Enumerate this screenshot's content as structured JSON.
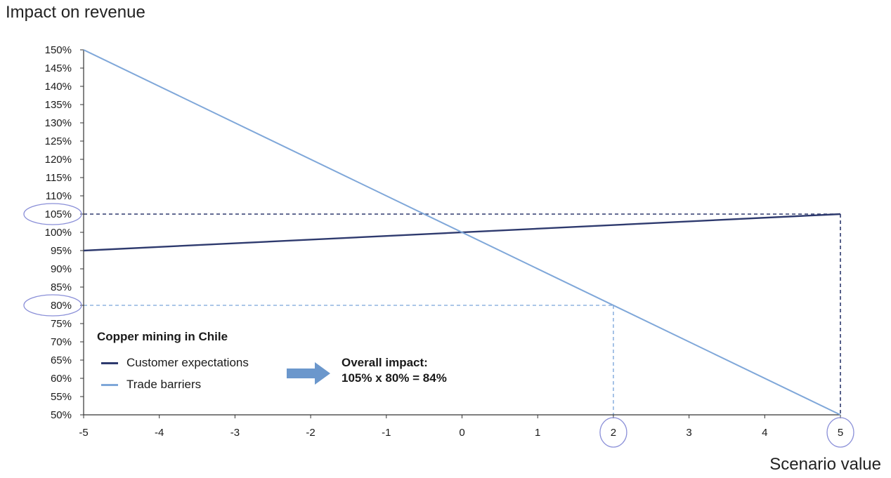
{
  "chart_data": {
    "type": "line",
    "ylabel": "Impact on revenue",
    "xlabel": "Scenario value",
    "x_ticks": [
      "-5",
      "-4",
      "-3",
      "-2",
      "-1",
      "0",
      "1",
      "2",
      "3",
      "4",
      "5"
    ],
    "y_ticks": [
      "150%",
      "145%",
      "140%",
      "135%",
      "130%",
      "125%",
      "120%",
      "115%",
      "110%",
      "105%",
      "100%",
      "95%",
      "90%",
      "85%",
      "80%",
      "75%",
      "70%",
      "65%",
      "60%",
      "55%",
      "50%"
    ],
    "xlim": [
      -5,
      5
    ],
    "ylim": [
      50,
      150
    ],
    "grid": false,
    "legend": {
      "title": "Copper mining in Chile",
      "placement": "bottom-left"
    },
    "series": [
      {
        "name": "Customer expectations",
        "color": "#2e3a6e",
        "x": [
          -5,
          5
        ],
        "y": [
          95,
          105
        ]
      },
      {
        "name": "Trade barriers",
        "color": "#7fa7d9",
        "x": [
          -5,
          5
        ],
        "y": [
          150,
          50
        ]
      }
    ],
    "guides": [
      {
        "x": 5,
        "y": 105,
        "color": "#2e3a6e"
      },
      {
        "x": 2,
        "y": 80,
        "color": "#8fb3e0"
      }
    ],
    "highlighted_y_ticks": [
      "105%",
      "80%"
    ],
    "highlighted_x_ticks": [
      "2",
      "5"
    ],
    "annotation": {
      "line1": "Overall impact:",
      "line2": "105% x 80% = 84%"
    }
  }
}
